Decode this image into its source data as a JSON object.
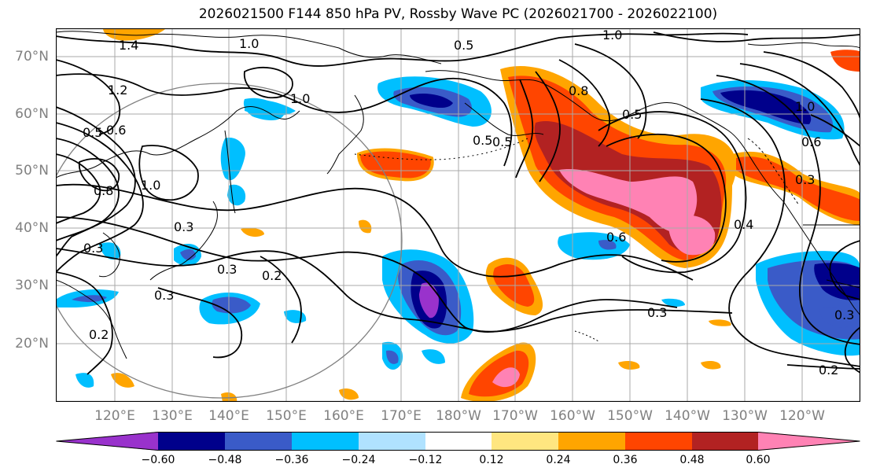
{
  "title": "2026021500 F144 850 hPa PV, Rossby Wave PC (2026021700 - 2026022100)",
  "map": {
    "lat_labels": [
      "70°N",
      "60°N",
      "50°N",
      "40°N",
      "30°N",
      "20°N"
    ],
    "lon_labels": [
      "120°E",
      "130°E",
      "140°E",
      "150°E",
      "160°E",
      "170°E",
      "180°W",
      "170°W",
      "160°W",
      "150°W",
      "140°W",
      "130°W",
      "120°W"
    ],
    "contour_labels": [
      {
        "text": "1.0"
      },
      {
        "text": "1.4"
      },
      {
        "text": "1.0"
      },
      {
        "text": "1.2"
      },
      {
        "text": "1.0"
      },
      {
        "text": "0.5"
      },
      {
        "text": "0.6"
      },
      {
        "text": "1.0"
      },
      {
        "text": "0.8"
      },
      {
        "text": "0.3"
      },
      {
        "text": "0.3"
      },
      {
        "text": "0.3"
      },
      {
        "text": "0.2"
      },
      {
        "text": "0.3"
      },
      {
        "text": "0.2"
      },
      {
        "text": "0.5"
      },
      {
        "text": "0.5"
      },
      {
        "text": "0.8"
      },
      {
        "text": "0.5"
      },
      {
        "text": "0.6"
      },
      {
        "text": "0.3"
      },
      {
        "text": "0.2"
      },
      {
        "text": "0.4"
      },
      {
        "text": "0.3"
      },
      {
        "text": "1.0"
      },
      {
        "text": "0.6"
      },
      {
        "text": "0.3"
      },
      {
        "text": "0.5"
      }
    ]
  },
  "colorbar": {
    "ticks": [
      "−0.60",
      "−0.48",
      "−0.36",
      "−0.24",
      "−0.12",
      "0.12",
      "0.24",
      "0.36",
      "0.48",
      "0.60"
    ],
    "colors": [
      "#9932cc",
      "#00008b",
      "#3a5bc8",
      "#00bfff",
      "#b0e2ff",
      "#ffffff",
      "#ffe680",
      "#ffa500",
      "#ff4500",
      "#b22222",
      "#ff82b4"
    ]
  },
  "colors": {
    "grid": "#a9a9a9",
    "coast": "#000000",
    "contour": "#000000",
    "range_circle": "#808080"
  }
}
